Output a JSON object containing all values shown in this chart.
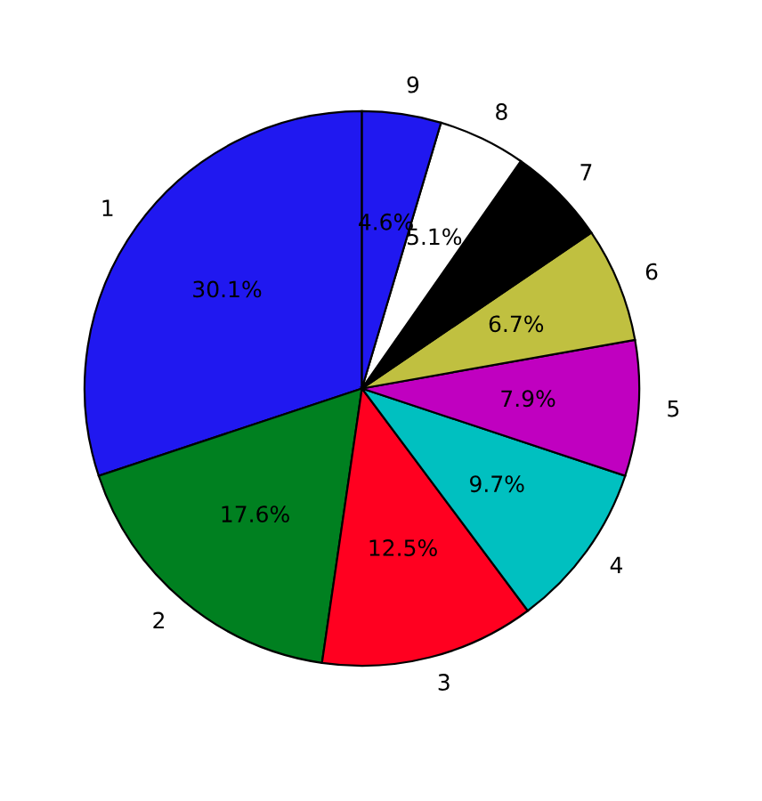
{
  "chart_data": {
    "type": "pie",
    "categories": [
      "1",
      "2",
      "3",
      "4",
      "5",
      "6",
      "7",
      "8",
      "9"
    ],
    "values": [
      30.1,
      17.6,
      12.5,
      9.7,
      7.9,
      6.7,
      5.8,
      5.1,
      4.6
    ],
    "value_labels": [
      "30.1%",
      "17.6%",
      "12.5%",
      "9.7%",
      "7.9%",
      "6.7%",
      null,
      "5.1%",
      "4.6%"
    ],
    "colors": [
      "#2018f0",
      "#008020",
      "#ff0020",
      "#00c0c0",
      "#c000c0",
      "#c0c040",
      "#000000",
      "#ffffff",
      "#2018f0"
    ]
  }
}
